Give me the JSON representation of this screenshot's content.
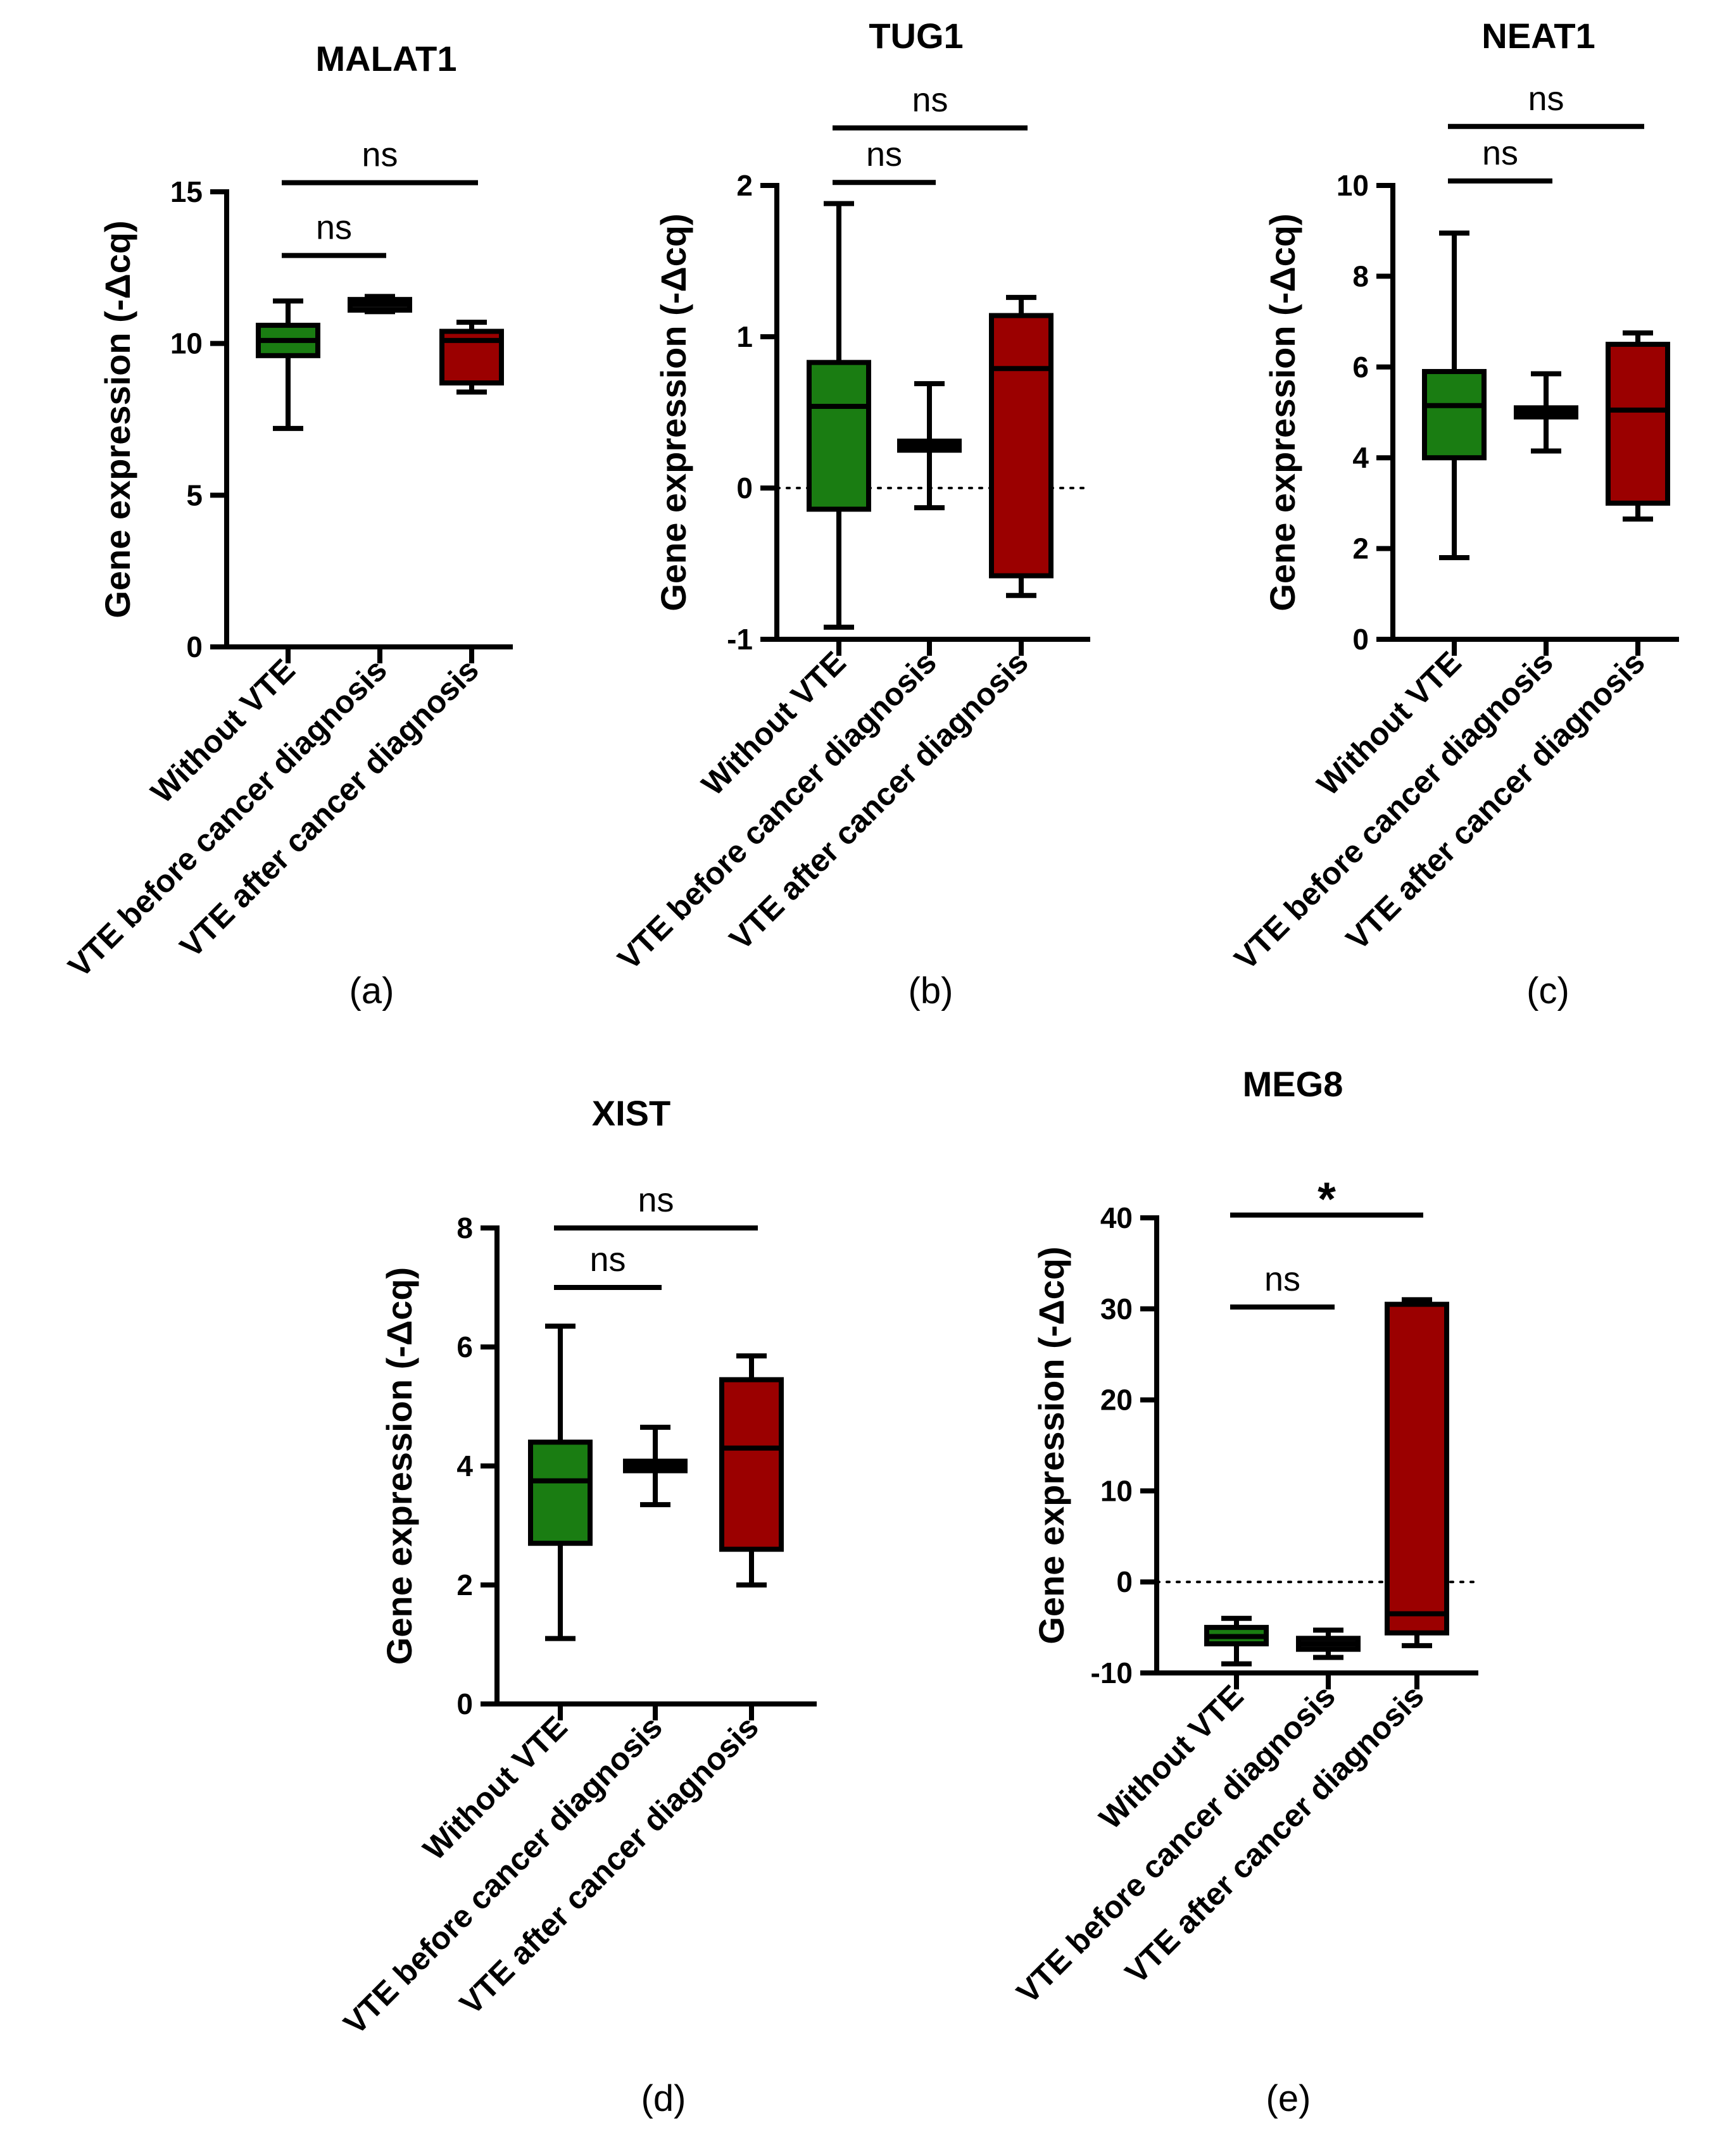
{
  "chart_data": [
    {
      "type": "box",
      "panel": "(a)",
      "title": "MALAT1",
      "ylabel": "Gene expression (-Δcq)",
      "ylim": [
        0,
        15
      ],
      "yticks": [
        "0",
        "5",
        "10",
        "15"
      ],
      "zero_line": false,
      "categories": [
        "Without VTE",
        "VTE before cancer diagnosis",
        "VTE after cancer diagnosis"
      ],
      "colors": [
        "#1a7d12",
        "#111111",
        "#9b0000"
      ],
      "boxes": [
        {
          "min": 7.2,
          "q1": 9.6,
          "median": 10.1,
          "q3": 10.6,
          "max": 11.4
        },
        {
          "min": 11.05,
          "q1": 11.1,
          "median": 11.3,
          "q3": 11.45,
          "max": 11.55
        },
        {
          "min": 8.4,
          "q1": 8.7,
          "median": 10.1,
          "q3": 10.4,
          "max": 10.7
        }
      ],
      "comparisons": [
        {
          "from": 0,
          "to": 1,
          "label": "ns",
          "y": 12.9
        },
        {
          "from": 0,
          "to": 2,
          "label": "ns",
          "y": 15.3
        }
      ]
    },
    {
      "type": "box",
      "panel": "(b)",
      "title": "TUG1",
      "ylabel": "Gene expression (-Δcq)",
      "ylim": [
        -1,
        2
      ],
      "yticks": [
        "-1",
        "0",
        "1",
        "2"
      ],
      "zero_line": true,
      "categories": [
        "Without VTE",
        "VTE before cancer diagnosis",
        "VTE after cancer diagnosis"
      ],
      "colors": [
        "#1a7d12",
        "#111111",
        "#9b0000"
      ],
      "boxes": [
        {
          "min": -0.92,
          "q1": -0.14,
          "median": 0.54,
          "q3": 0.83,
          "max": 1.88
        },
        {
          "min": -0.13,
          "q1": 0.25,
          "median": 0.28,
          "q3": 0.31,
          "max": 0.69
        },
        {
          "min": -0.71,
          "q1": -0.58,
          "median": 0.79,
          "q3": 1.14,
          "max": 1.26
        }
      ],
      "comparisons": [
        {
          "from": 0,
          "to": 1,
          "label": "ns",
          "y": 2.02
        },
        {
          "from": 0,
          "to": 2,
          "label": "ns",
          "y": 2.38
        }
      ]
    },
    {
      "type": "box",
      "panel": "(c)",
      "title": "NEAT1",
      "ylabel": "Gene expression (-Δcq)",
      "ylim": [
        0,
        10
      ],
      "yticks": [
        "0",
        "2",
        "4",
        "6",
        "8",
        "10"
      ],
      "zero_line": false,
      "categories": [
        "Without VTE",
        "VTE before cancer diagnosis",
        "VTE after cancer diagnosis"
      ],
      "colors": [
        "#1a7d12",
        "#111111",
        "#9b0000"
      ],
      "boxes": [
        {
          "min": 1.8,
          "q1": 4.0,
          "median": 5.15,
          "q3": 5.9,
          "max": 8.95
        },
        {
          "min": 4.15,
          "q1": 4.9,
          "median": 5.0,
          "q3": 5.1,
          "max": 5.85
        },
        {
          "min": 2.65,
          "q1": 3.0,
          "median": 5.05,
          "q3": 6.5,
          "max": 6.75
        }
      ],
      "comparisons": [
        {
          "from": 0,
          "to": 1,
          "label": "ns",
          "y": 10.1
        },
        {
          "from": 0,
          "to": 2,
          "label": "ns",
          "y": 11.3
        }
      ]
    },
    {
      "type": "box",
      "panel": "(d)",
      "title": "XIST",
      "ylabel": "Gene expression (-Δcq)",
      "ylim": [
        0,
        8
      ],
      "yticks": [
        "0",
        "2",
        "4",
        "6",
        "8"
      ],
      "zero_line": false,
      "categories": [
        "Without VTE",
        "VTE before cancer diagnosis",
        "VTE after cancer diagnosis"
      ],
      "colors": [
        "#1a7d12",
        "#111111",
        "#9b0000"
      ],
      "boxes": [
        {
          "min": 1.1,
          "q1": 2.7,
          "median": 3.75,
          "q3": 4.4,
          "max": 6.35
        },
        {
          "min": 3.35,
          "q1": 3.92,
          "median": 4.0,
          "q3": 4.08,
          "max": 4.65
        },
        {
          "min": 2.0,
          "q1": 2.6,
          "median": 4.3,
          "q3": 5.45,
          "max": 5.85
        }
      ],
      "comparisons": [
        {
          "from": 0,
          "to": 1,
          "label": "ns",
          "y": 7.0
        },
        {
          "from": 0,
          "to": 2,
          "label": "ns",
          "y": 8.0
        }
      ]
    },
    {
      "type": "box",
      "panel": "(e)",
      "title": "MEG8",
      "ylabel": "Gene expression (-Δcq)",
      "ylim": [
        -10,
        40
      ],
      "yticks": [
        "-10",
        "0",
        "10",
        "20",
        "30",
        "40"
      ],
      "zero_line": true,
      "categories": [
        "Without VTE",
        "VTE before cancer diagnosis",
        "VTE after cancer diagnosis"
      ],
      "colors": [
        "#1a7d12",
        "#111111",
        "#9b0000"
      ],
      "boxes": [
        {
          "min": -9.0,
          "q1": -6.8,
          "median": -6.0,
          "q3": -5.0,
          "max": -4.0
        },
        {
          "min": -8.3,
          "q1": -7.4,
          "median": -6.8,
          "q3": -6.2,
          "max": -5.3
        },
        {
          "min": -7.0,
          "q1": -5.6,
          "median": -3.5,
          "q3": 30.5,
          "max": 31.0
        }
      ],
      "comparisons": [
        {
          "from": 0,
          "to": 1,
          "label": "ns",
          "y": 30.2
        },
        {
          "from": 0,
          "to": 2,
          "label": "*",
          "y": 40.3
        }
      ]
    }
  ]
}
